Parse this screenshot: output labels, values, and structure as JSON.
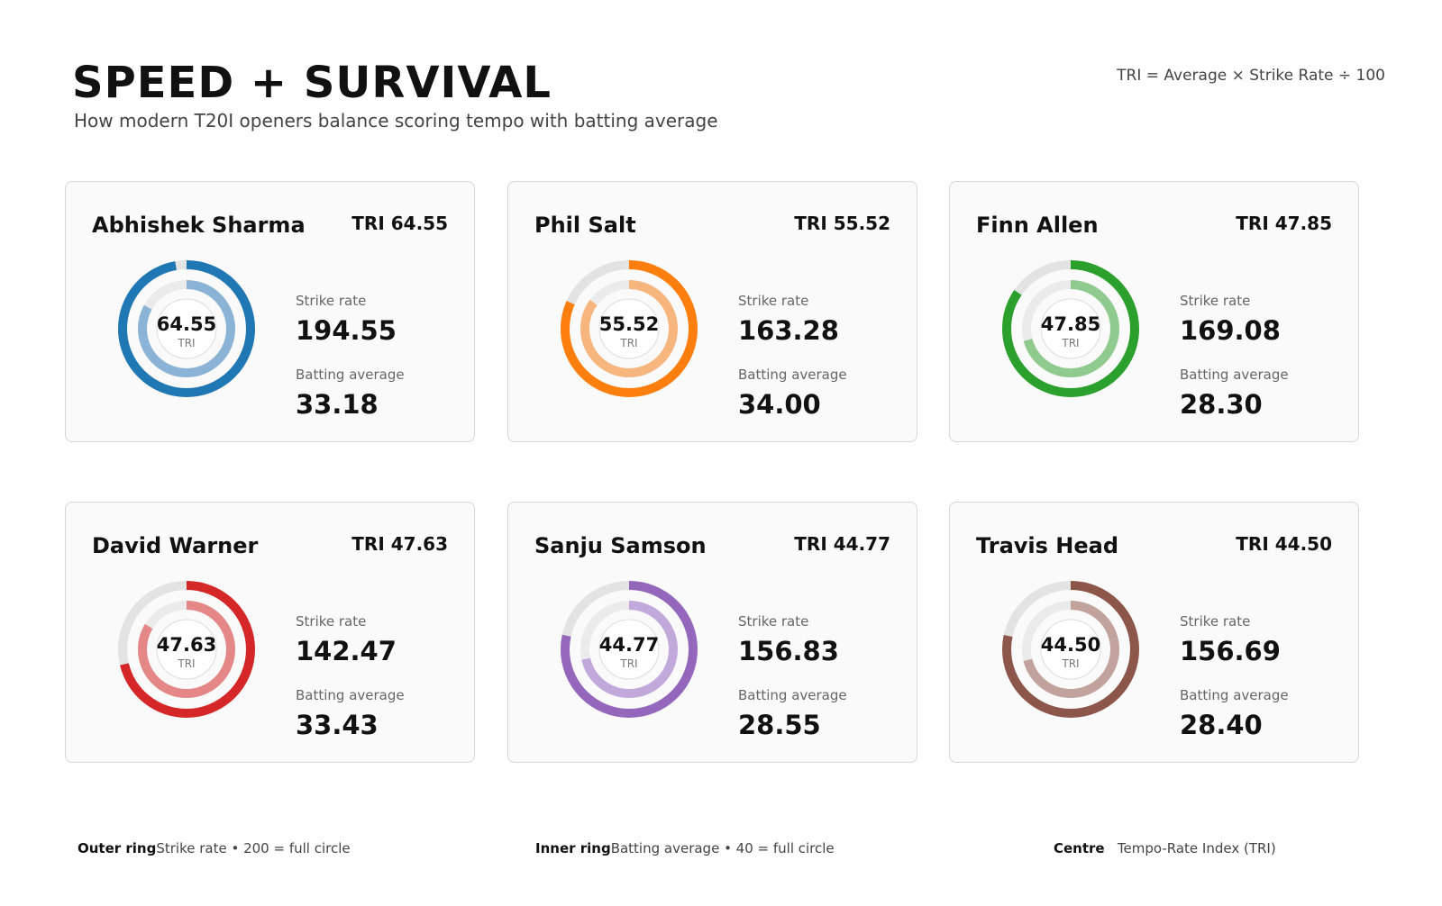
{
  "header": {
    "title": "SPEED + SURVIVAL",
    "subtitle": "How modern T20I openers balance scoring tempo with batting average",
    "formula": "TRI = Average × Strike Rate ÷ 100"
  },
  "labels": {
    "strike_rate": "Strike rate",
    "batting_average": "Batting average",
    "tri": "TRI"
  },
  "legend": [
    {
      "key": "Outer ring",
      "desc": "Strike rate • 200 = full circle"
    },
    {
      "key": "Inner ring",
      "desc": "Batting average • 40 = full circle"
    },
    {
      "key": "Centre",
      "desc": "Tempo-Rate Index (TRI)"
    }
  ],
  "chart_data": {
    "type": "donut",
    "outer_full": 200,
    "inner_full": 40,
    "players": [
      {
        "name": "Abhishek Sharma",
        "tri": "64.55",
        "strike_rate": "194.55",
        "average": "33.18",
        "color": "#1f77b4",
        "light": "#8bb3d6"
      },
      {
        "name": "Phil Salt",
        "tri": "55.52",
        "strike_rate": "163.28",
        "average": "34.00",
        "color": "#ff7f0e",
        "light": "#f8b67f"
      },
      {
        "name": "Finn Allen",
        "tri": "47.85",
        "strike_rate": "169.08",
        "average": "28.30",
        "color": "#2ca02c",
        "light": "#8fcb8f"
      },
      {
        "name": "David Warner",
        "tri": "47.63",
        "strike_rate": "142.47",
        "average": "33.43",
        "color": "#d62728",
        "light": "#e58787"
      },
      {
        "name": "Sanju Samson",
        "tri": "44.77",
        "strike_rate": "156.83",
        "average": "28.55",
        "color": "#9467bd",
        "light": "#c2a9dc"
      },
      {
        "name": "Travis Head",
        "tri": "44.50",
        "strike_rate": "156.69",
        "average": "28.40",
        "color": "#8c564b",
        "light": "#c2a29c"
      }
    ]
  }
}
